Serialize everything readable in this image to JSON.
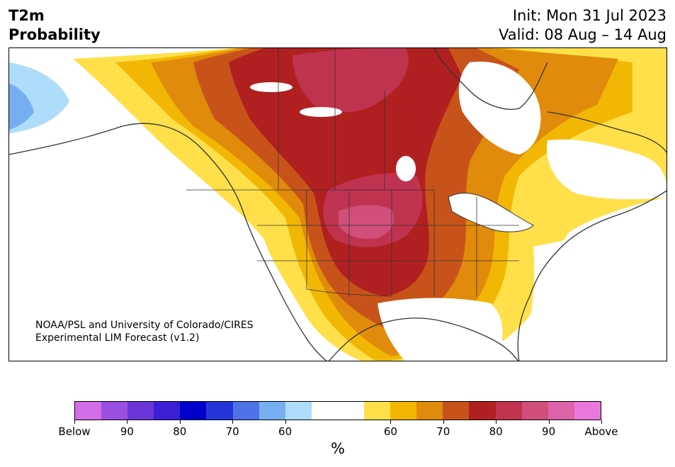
{
  "header": {
    "title_line1": "T2m",
    "title_line2": "Probability",
    "init": "Init: Mon 31 Jul 2023",
    "valid": "Valid: 08 Aug – 14 Aug"
  },
  "map": {
    "credit_line1": "NOAA/PSL and University of Colorado/CIRES",
    "credit_line2": "Experimental LIM Forecast (v1.2)",
    "colors": {
      "land_outline": "#333333",
      "water": "#ffffff"
    }
  },
  "colorbar": {
    "unit": "%",
    "colors": [
      "#d36ee8",
      "#9b4fe0",
      "#6a35d9",
      "#3a1fd4",
      "#0000cc",
      "#2436d8",
      "#4f72e8",
      "#76aff0",
      "#aedcfb",
      "#ffffff",
      "#ffffff",
      "#ffe04a",
      "#f2b705",
      "#e08b0b",
      "#c8531a",
      "#b02020",
      "#c0334f",
      "#d14f7a",
      "#dc63a8",
      "#ea78dc"
    ],
    "tick_labels": [
      "Below",
      "90",
      "80",
      "70",
      "60",
      "60",
      "70",
      "80",
      "90",
      "Above"
    ]
  }
}
